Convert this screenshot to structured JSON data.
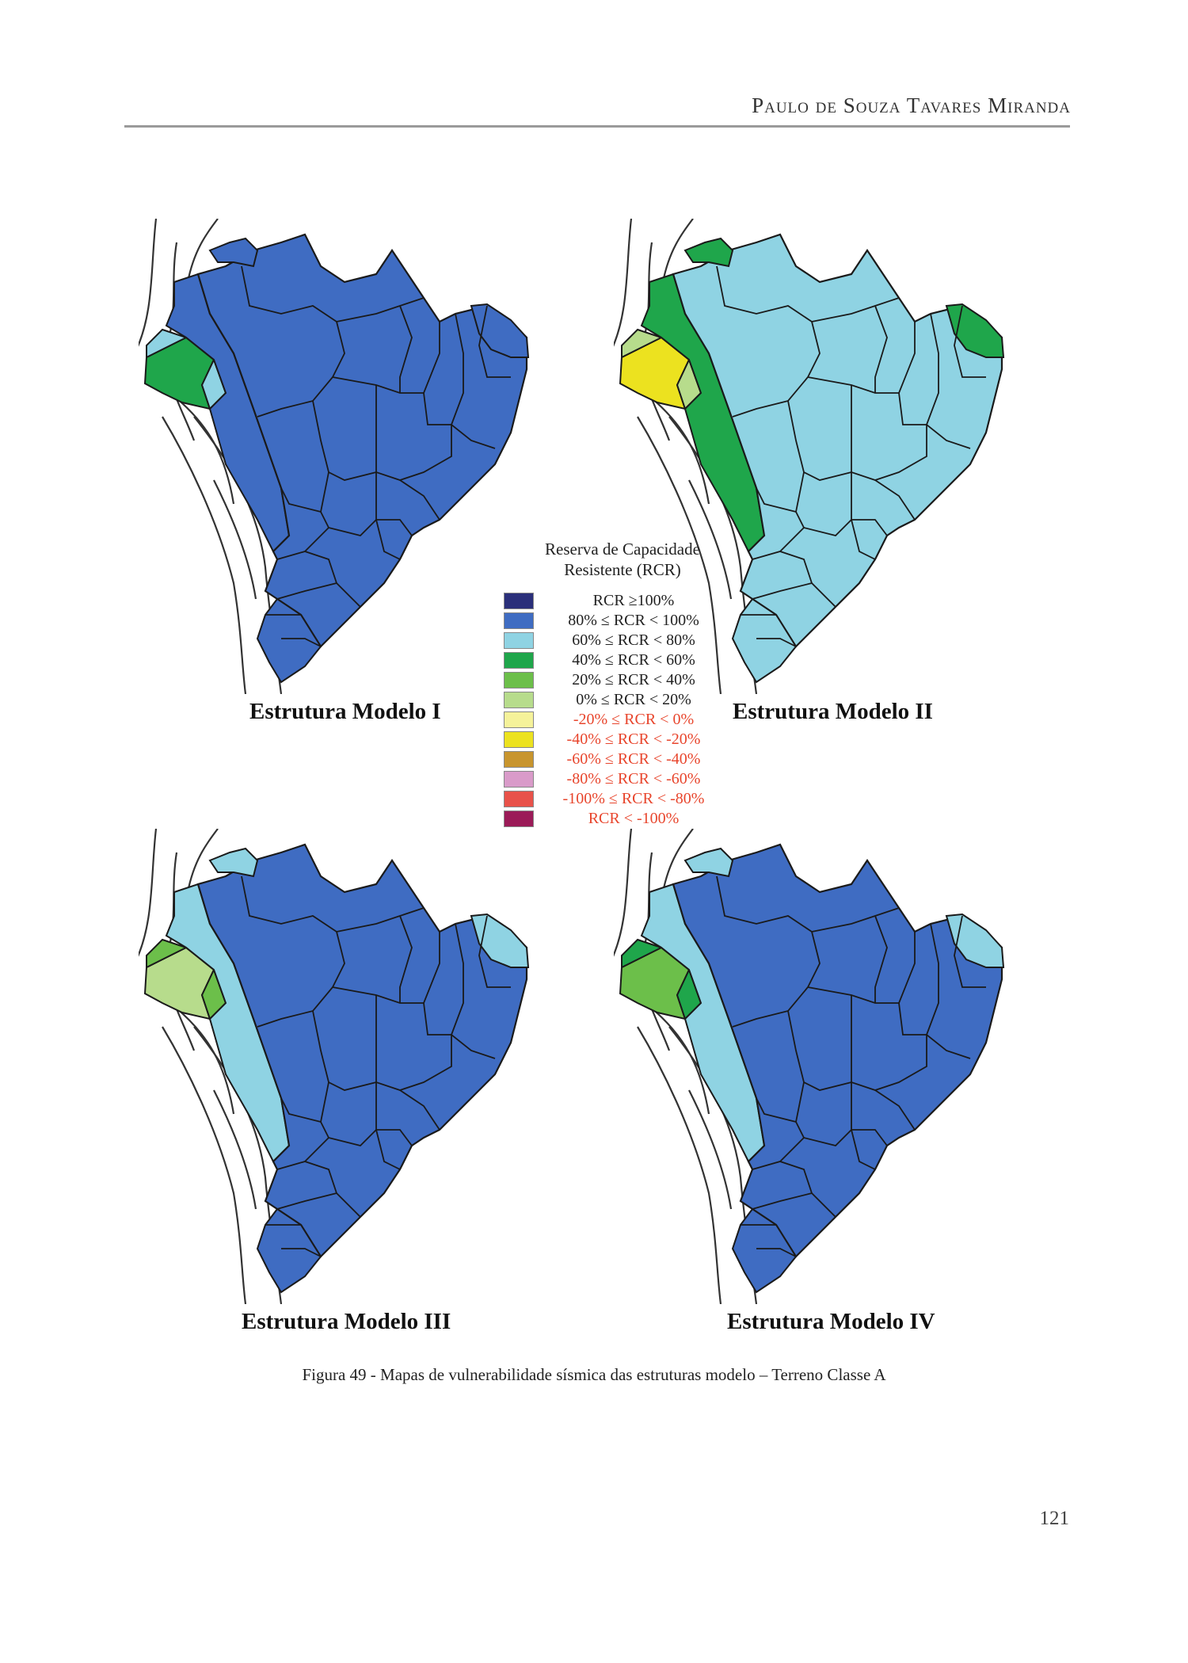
{
  "header": {
    "running_head": "Paulo de Souza Tavares Miranda"
  },
  "legend": {
    "title_line1": "Reserva de Capacidade",
    "title_line2": "Resistente (RCR)",
    "items": [
      {
        "label": "RCR ≥100%",
        "color": "#2a2f7a",
        "text_color": "#222222"
      },
      {
        "label": "80% ≤ RCR < 100%",
        "color": "#3f6cc2",
        "text_color": "#222222"
      },
      {
        "label": "60% ≤ RCR < 80%",
        "color": "#8fd3e3",
        "text_color": "#222222"
      },
      {
        "label": "40% ≤ RCR < 60%",
        "color": "#1fa64b",
        "text_color": "#222222"
      },
      {
        "label": "20% ≤ RCR < 40%",
        "color": "#6cbf4a",
        "text_color": "#222222"
      },
      {
        "label": "0% ≤ RCR < 20%",
        "color": "#b7dc8c",
        "text_color": "#222222"
      },
      {
        "label": "-20% ≤ RCR < 0%",
        "color": "#f5f29a",
        "text_color": "#e8452c"
      },
      {
        "label": "-40% ≤ RCR < -20%",
        "color": "#ece21f",
        "text_color": "#e8452c"
      },
      {
        "label": "-60% ≤ RCR < -40%",
        "color": "#c8952e",
        "text_color": "#e8452c"
      },
      {
        "label": "-80% ≤ RCR < -60%",
        "color": "#d99bc9",
        "text_color": "#e8452c"
      },
      {
        "label": "-100% ≤ RCR < -80%",
        "color": "#e8524a",
        "text_color": "#e8452c"
      },
      {
        "label": "RCR < -100%",
        "color": "#9b1b58",
        "text_color": "#e8452c"
      }
    ]
  },
  "maps": [
    {
      "label": "Estrutura Modelo I",
      "west_far": "#1fa64b",
      "west_mid": "#8fd3e3",
      "west_band": "#3f6cc2",
      "main": "#3f6cc2",
      "northeast": "#3f6cc2",
      "north_tip": "#3f6cc2"
    },
    {
      "label": "Estrutura Modelo II",
      "west_far": "#ece21f",
      "west_mid": "#b7dc8c",
      "west_band": "#1fa64b",
      "main": "#8fd3e3",
      "northeast": "#1fa64b",
      "north_tip": "#1fa64b"
    },
    {
      "label": "Estrutura Modelo III",
      "west_far": "#b7dc8c",
      "west_mid": "#6cbf4a",
      "west_band": "#8fd3e3",
      "main": "#3f6cc2",
      "northeast": "#8fd3e3",
      "north_tip": "#8fd3e3"
    },
    {
      "label": "Estrutura Modelo IV",
      "west_far": "#6cbf4a",
      "west_mid": "#1fa64b",
      "west_band": "#8fd3e3",
      "main": "#3f6cc2",
      "northeast": "#8fd3e3",
      "north_tip": "#8fd3e3"
    }
  ],
  "caption": "Figura 49 - Mapas de vulnerabilidade sísmica das estruturas modelo – Terreno Classe A",
  "page_number": "121"
}
